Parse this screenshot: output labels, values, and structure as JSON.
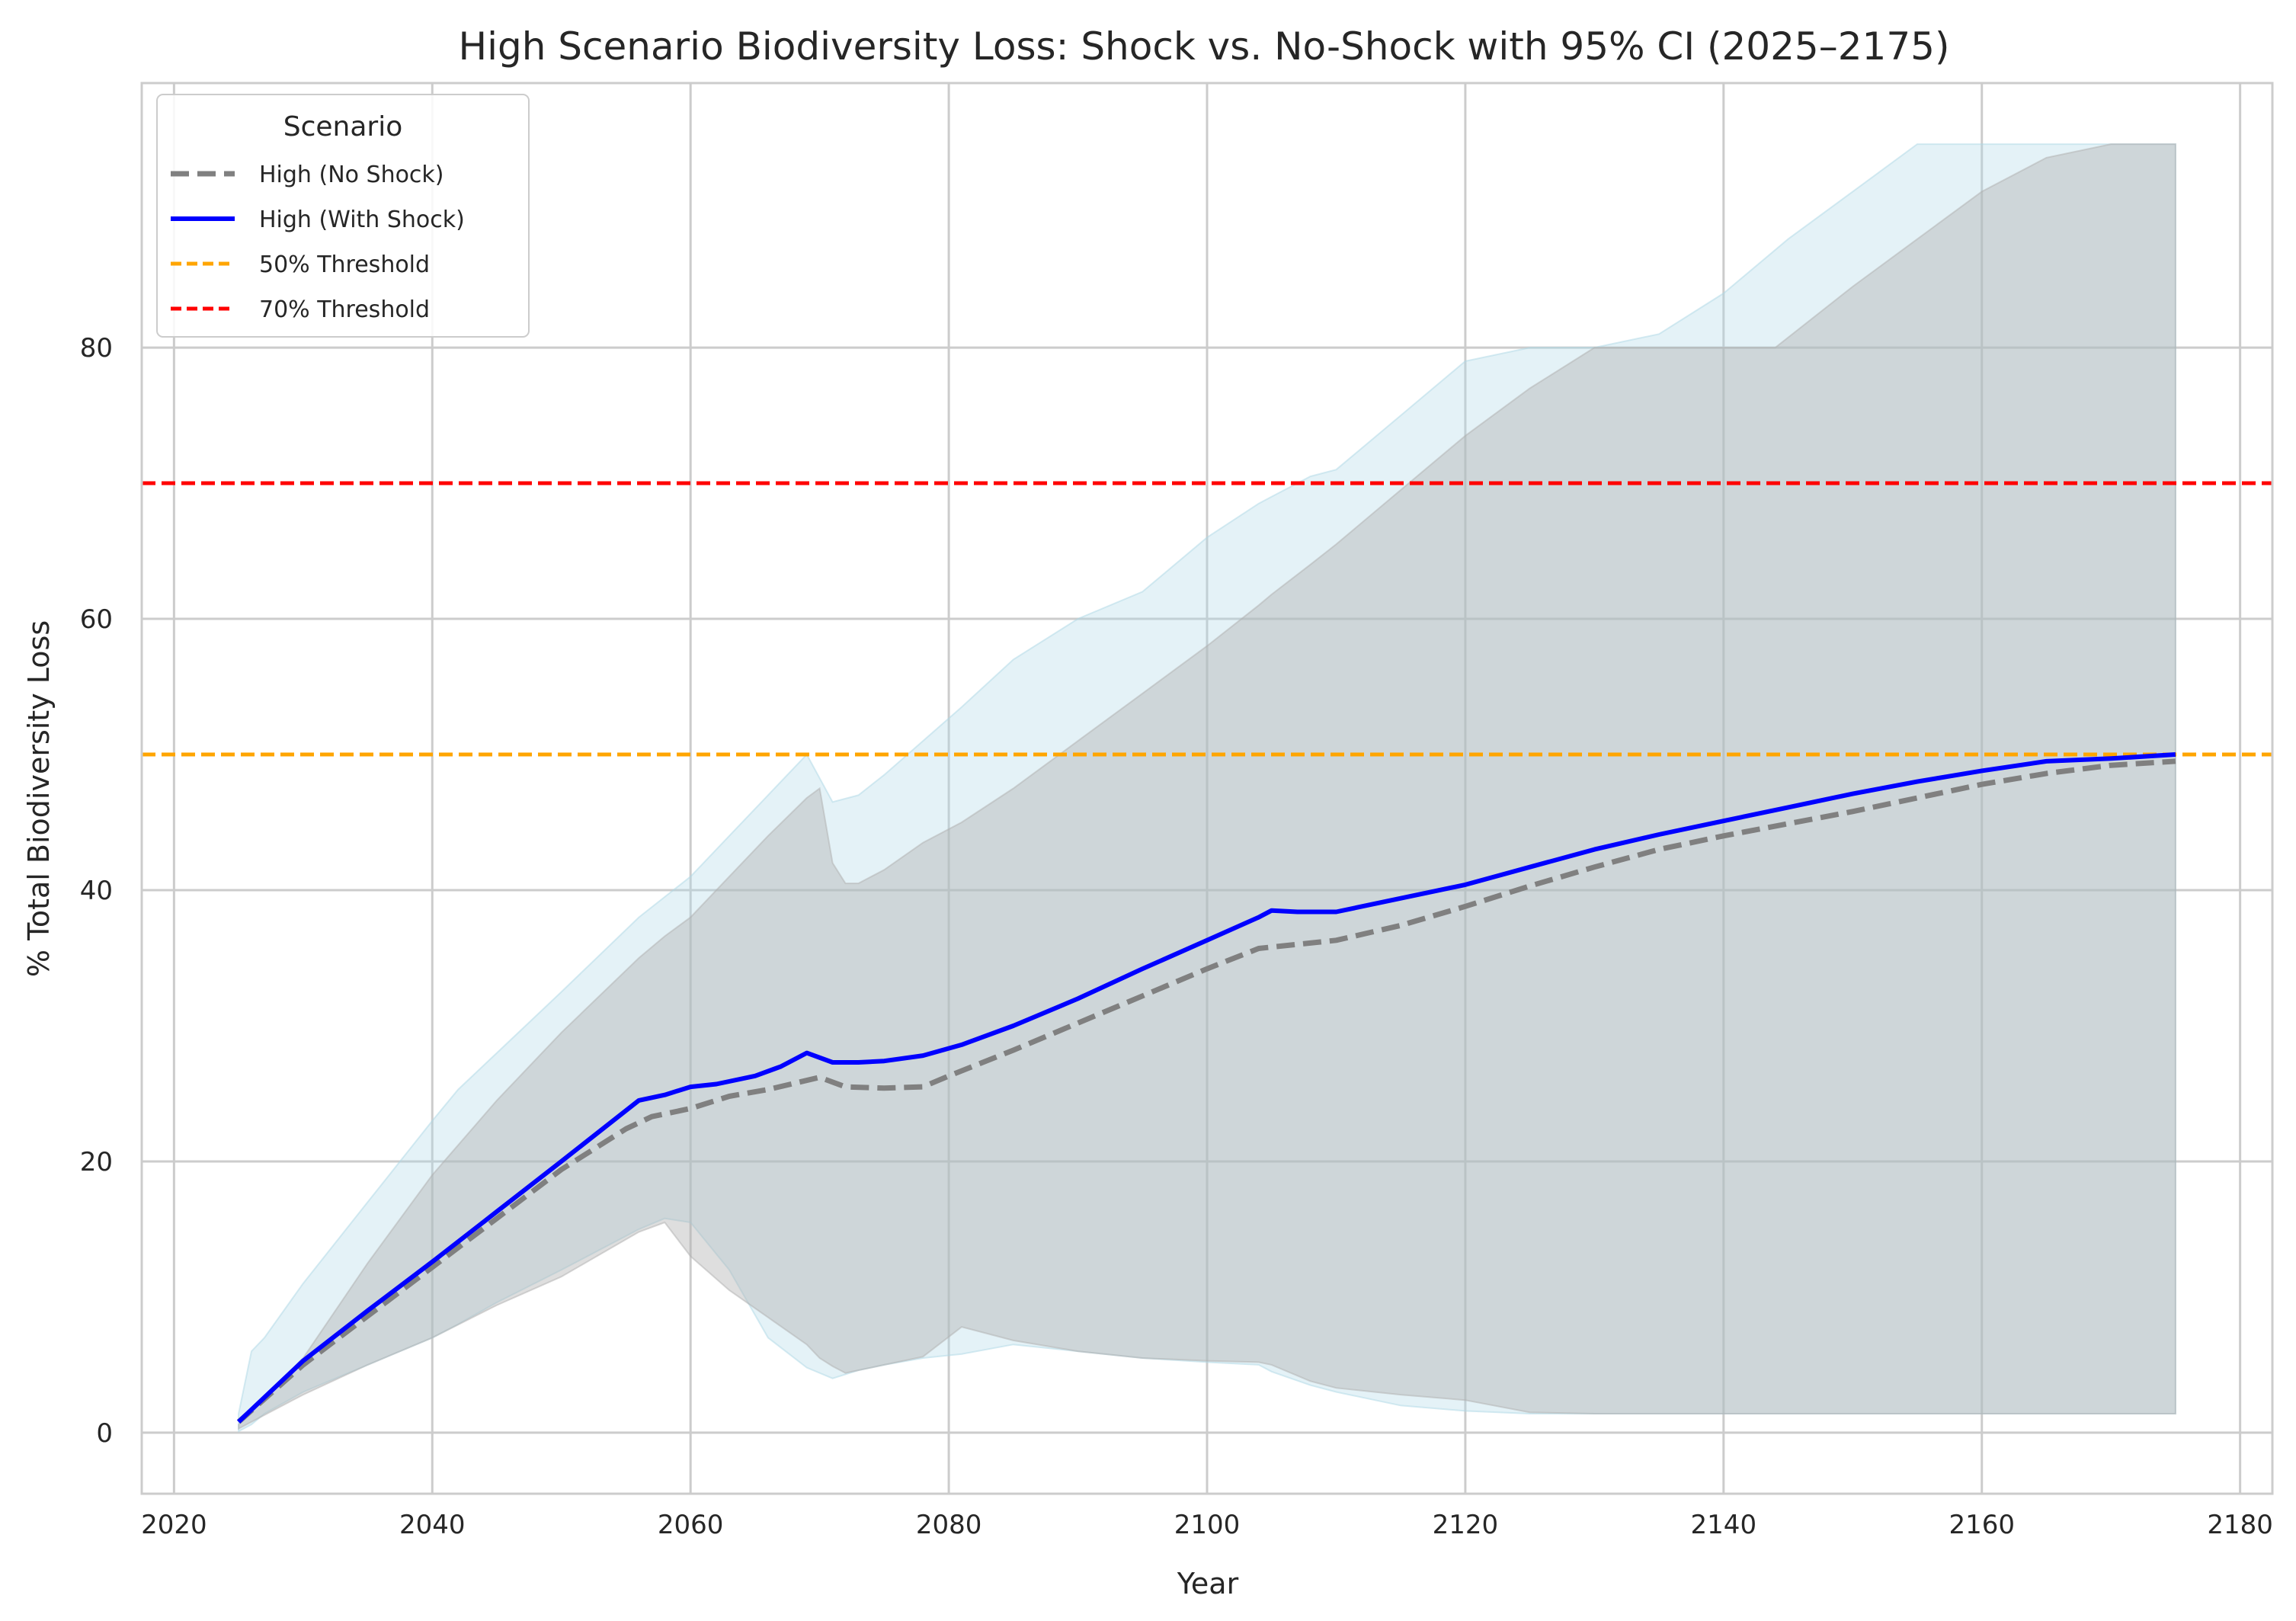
{
  "chart_data": {
    "type": "line",
    "title": "High Scenario Biodiversity Loss: Shock vs. No-Shock with 95% CI (2025–2175)",
    "xlabel": "Year",
    "ylabel": "% Total Biodiversity Loss",
    "xlim": [
      2017.5,
      2182.5
    ],
    "ylim": [
      -4.5,
      99.5
    ],
    "xticks": [
      2020,
      2040,
      2060,
      2080,
      2100,
      2120,
      2140,
      2160,
      2180
    ],
    "yticks": [
      0,
      20,
      40,
      60,
      80
    ],
    "grid": true,
    "legend": {
      "title": "Scenario",
      "placement": "top-left",
      "entries": [
        "High (No Shock)",
        "High (With Shock)",
        "50% Threshold",
        "70% Threshold"
      ]
    },
    "series": [
      {
        "name": "High (No Shock)",
        "style": "dashed",
        "color": "#808080",
        "x": [
          2025,
          2030,
          2035,
          2040,
          2045,
          2050,
          2055,
          2057,
          2060,
          2063,
          2066,
          2070,
          2072,
          2075,
          2078,
          2080,
          2085,
          2090,
          2095,
          2100,
          2104,
          2105,
          2110,
          2115,
          2120,
          2125,
          2130,
          2135,
          2140,
          2145,
          2150,
          2155,
          2160,
          2165,
          2170,
          2175
        ],
        "y": [
          0.8,
          5.0,
          8.6,
          12.2,
          15.8,
          19.4,
          22.4,
          23.3,
          23.9,
          24.8,
          25.3,
          26.2,
          25.5,
          25.4,
          25.5,
          26.3,
          28.2,
          30.2,
          32.2,
          34.2,
          35.7,
          35.8,
          36.3,
          37.4,
          38.8,
          40.3,
          41.7,
          43.0,
          44.0,
          44.9,
          45.8,
          46.8,
          47.8,
          48.6,
          49.2,
          49.5
        ]
      },
      {
        "name": "High (With Shock)",
        "style": "solid",
        "color": "#0000ff",
        "x": [
          2025,
          2030,
          2035,
          2040,
          2045,
          2050,
          2056,
          2058,
          2060,
          2062,
          2065,
          2067,
          2069,
          2071,
          2073,
          2075,
          2078,
          2081,
          2085,
          2090,
          2095,
          2100,
          2104,
          2105,
          2107,
          2110,
          2115,
          2120,
          2125,
          2130,
          2135,
          2140,
          2145,
          2150,
          2155,
          2160,
          2165,
          2170,
          2175
        ],
        "y": [
          0.8,
          5.3,
          9.0,
          12.6,
          16.3,
          20.0,
          24.5,
          24.9,
          25.5,
          25.7,
          26.3,
          27.0,
          28.0,
          27.3,
          27.3,
          27.4,
          27.8,
          28.6,
          30.0,
          32.0,
          34.2,
          36.3,
          38.0,
          38.5,
          38.4,
          38.4,
          39.4,
          40.4,
          41.7,
          43.0,
          44.1,
          45.1,
          46.1,
          47.1,
          48.0,
          48.8,
          49.5,
          49.7,
          50.0
        ]
      }
    ],
    "bands": [
      {
        "name": "High (With Shock) 95% CI",
        "color": "#add8e6",
        "x": [
          2025,
          2026,
          2027,
          2030,
          2035,
          2040,
          2042,
          2045,
          2050,
          2056,
          2058,
          2060,
          2063,
          2066,
          2069,
          2071,
          2073,
          2075,
          2078,
          2081,
          2085,
          2090,
          2095,
          2100,
          2104,
          2105,
          2108,
          2110,
          2115,
          2120,
          2125,
          2130,
          2135,
          2140,
          2145,
          2150,
          2155,
          2160,
          2165,
          2170,
          2175
        ],
        "upper": [
          1.4,
          6.0,
          7.0,
          11.0,
          17.0,
          23.0,
          25.3,
          28.0,
          32.5,
          38.0,
          39.5,
          41.0,
          44.0,
          47.0,
          50.0,
          46.5,
          47.0,
          48.5,
          51.0,
          53.5,
          57.0,
          60.0,
          62.0,
          66.0,
          68.5,
          69.0,
          70.5,
          71.0,
          75.0,
          79.0,
          80.0,
          80.0,
          81.0,
          84.0,
          88.0,
          91.5,
          95.0,
          95.0,
          95.0,
          95.0,
          95.0
        ],
        "lower": [
          0.1,
          0.6,
          1.4,
          3.0,
          5.0,
          7.0,
          8.0,
          9.6,
          12.0,
          15.0,
          15.8,
          15.5,
          12.0,
          7.0,
          4.8,
          4.0,
          4.6,
          5.0,
          5.5,
          5.8,
          6.5,
          6.0,
          5.5,
          5.2,
          5.0,
          4.5,
          3.5,
          3.0,
          2.0,
          1.6,
          1.4,
          1.4,
          1.4,
          1.4,
          1.4,
          1.4,
          1.4,
          1.4,
          1.4,
          1.4,
          1.4
        ]
      },
      {
        "name": "High (No Shock) 95% CI",
        "color": "#b0b0b0",
        "x": [
          2025,
          2030,
          2035,
          2040,
          2045,
          2050,
          2056,
          2058,
          2060,
          2063,
          2066,
          2069,
          2070,
          2071,
          2072,
          2073,
          2075,
          2078,
          2081,
          2085,
          2090,
          2095,
          2100,
          2104,
          2105,
          2108,
          2110,
          2115,
          2120,
          2125,
          2130,
          2135,
          2140,
          2144,
          2150,
          2155,
          2160,
          2165,
          2170,
          2175
        ],
        "upper": [
          0.6,
          5.5,
          12.5,
          19.0,
          24.5,
          29.5,
          35.0,
          36.6,
          38.0,
          41.0,
          44.0,
          46.8,
          47.5,
          42.0,
          40.5,
          40.5,
          41.5,
          43.5,
          45.0,
          47.5,
          51.0,
          54.5,
          58.0,
          61.0,
          61.8,
          64.0,
          65.5,
          69.5,
          73.5,
          77.0,
          80.0,
          80.0,
          80.0,
          80.0,
          84.5,
          88.0,
          91.5,
          94.0,
          95.0,
          95.0
        ],
        "lower": [
          0.3,
          2.8,
          5.0,
          7.0,
          9.4,
          11.5,
          14.8,
          15.5,
          13.0,
          10.5,
          8.5,
          6.5,
          5.5,
          4.9,
          4.4,
          4.6,
          5.0,
          5.6,
          7.8,
          6.8,
          6.0,
          5.5,
          5.3,
          5.2,
          5.0,
          3.8,
          3.3,
          2.8,
          2.4,
          1.5,
          1.4,
          1.4,
          1.4,
          1.4,
          1.4,
          1.4,
          1.4,
          1.4,
          1.4,
          1.4
        ]
      }
    ],
    "thresholds": [
      {
        "name": "50% Threshold",
        "y": 50,
        "color": "#ffa500"
      },
      {
        "name": "70% Threshold",
        "y": 70,
        "color": "#ff0000"
      }
    ]
  }
}
